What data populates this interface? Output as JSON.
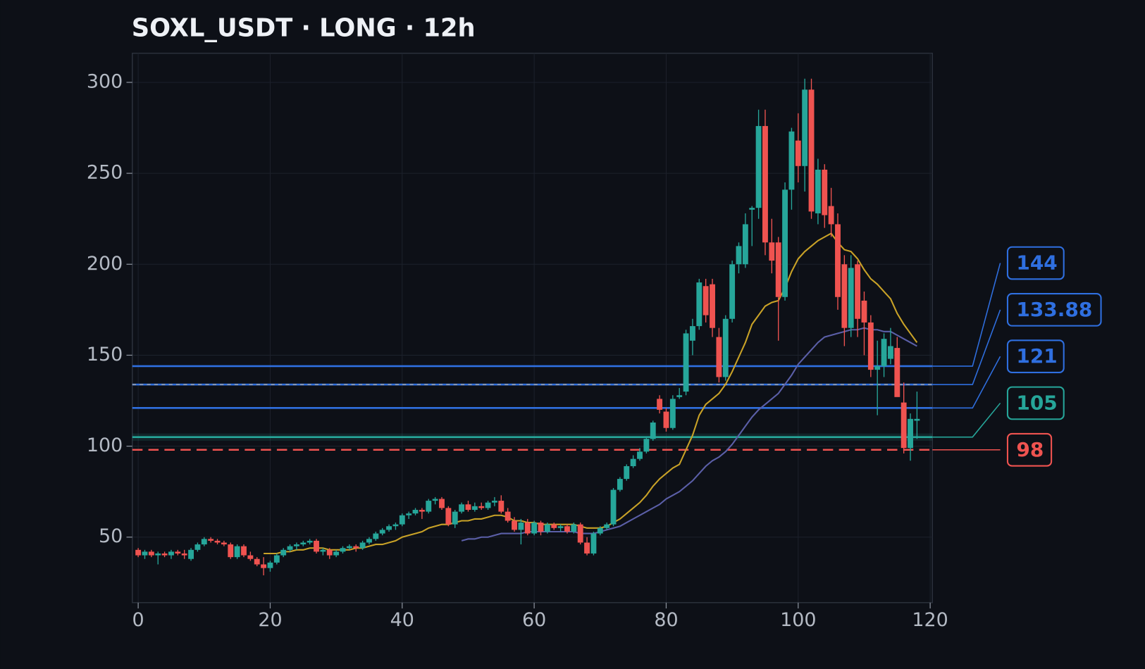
{
  "chart_data": {
    "type": "candlestick",
    "title": "SOXL_USDT · LONG · 12h",
    "x": [
      0,
      1,
      2,
      3,
      4,
      5,
      6,
      7,
      8,
      9,
      10,
      11,
      12,
      13,
      14,
      15,
      16,
      17,
      18,
      19,
      20,
      21,
      22,
      23,
      24,
      25,
      26,
      27,
      28,
      29,
      30,
      31,
      32,
      33,
      34,
      35,
      36,
      37,
      38,
      39,
      40,
      41,
      42,
      43,
      44,
      45,
      46,
      47,
      48,
      49,
      50,
      51,
      52,
      53,
      54,
      55,
      56,
      57,
      58,
      59,
      60,
      61,
      62,
      63,
      64,
      65,
      66,
      67,
      68,
      69,
      70,
      71,
      72,
      73,
      74,
      75,
      76,
      77,
      78,
      79,
      80,
      81,
      82,
      83,
      84,
      85,
      86,
      87,
      88,
      89,
      90,
      91,
      92,
      93,
      94,
      95,
      96,
      97,
      98,
      99,
      100,
      101,
      102,
      103,
      104,
      105,
      106,
      107,
      108,
      109,
      110,
      111,
      112,
      113,
      114,
      115,
      116,
      117,
      118
    ],
    "open": [
      43,
      40,
      42,
      40,
      41,
      40,
      42,
      41,
      38,
      43,
      46,
      49,
      48,
      47,
      46,
      39,
      45,
      40,
      38,
      35,
      33,
      36,
      40,
      43,
      45,
      46,
      47,
      48,
      42,
      43,
      40,
      42,
      44,
      45,
      44,
      47,
      49,
      52,
      54,
      56,
      57,
      62,
      63,
      65,
      64,
      70,
      71,
      66,
      57,
      64,
      68,
      65,
      67,
      66,
      69,
      70,
      64,
      59,
      54,
      58,
      52,
      58,
      53,
      57,
      55,
      56,
      53,
      57,
      47,
      41,
      52,
      55,
      57,
      76,
      82,
      89,
      93,
      97,
      104,
      126,
      119,
      110,
      127,
      130,
      158,
      166,
      188,
      189,
      160,
      138,
      170,
      200,
      200,
      230,
      231,
      276,
      212,
      212,
      182,
      241,
      268,
      254,
      296,
      228,
      252,
      232,
      222,
      200,
      165,
      200,
      180,
      168,
      142,
      144,
      148,
      154,
      124,
      99,
      114
    ],
    "high": [
      44,
      43,
      43,
      42,
      42,
      43,
      43,
      43,
      44,
      47,
      50,
      50,
      49,
      48,
      47,
      46,
      46,
      42,
      39,
      39,
      37,
      41,
      44,
      46,
      47,
      48,
      49,
      49,
      44,
      44,
      43,
      45,
      46,
      46,
      48,
      50,
      53,
      55,
      57,
      58,
      63,
      64,
      66,
      66,
      71,
      72,
      72,
      67,
      65,
      69,
      70,
      69,
      69,
      70,
      72,
      73,
      66,
      61,
      60,
      60,
      59,
      59,
      58,
      58,
      57,
      57,
      58,
      58,
      50,
      53,
      56,
      58,
      77,
      83,
      90,
      95,
      99,
      105,
      114,
      128,
      121,
      128,
      132,
      164,
      170,
      192,
      192,
      192,
      165,
      172,
      202,
      212,
      228,
      232,
      285,
      285,
      225,
      215,
      245,
      275,
      283,
      302,
      302,
      258,
      255,
      242,
      228,
      205,
      205,
      202,
      185,
      172,
      158,
      162,
      165,
      160,
      135,
      118,
      130
    ],
    "low": [
      39,
      38,
      39,
      35,
      39,
      38,
      40,
      38,
      37,
      42,
      45,
      47,
      46,
      45,
      38,
      38,
      39,
      37,
      34,
      29,
      31,
      35,
      39,
      42,
      43,
      45,
      46,
      41,
      40,
      38,
      39,
      41,
      43,
      42,
      43,
      46,
      48,
      51,
      53,
      54,
      56,
      60,
      62,
      60,
      63,
      68,
      65,
      56,
      55,
      63,
      64,
      64,
      65,
      65,
      67,
      63,
      58,
      53,
      46,
      51,
      51,
      51,
      52,
      54,
      53,
      52,
      52,
      46,
      40,
      40,
      51,
      54,
      56,
      75,
      81,
      88,
      92,
      96,
      103,
      118,
      108,
      109,
      126,
      128,
      150,
      164,
      168,
      160,
      135,
      136,
      168,
      195,
      198,
      210,
      225,
      205,
      195,
      158,
      180,
      230,
      245,
      240,
      225,
      222,
      220,
      215,
      175,
      155,
      160,
      160,
      150,
      138,
      117,
      138,
      145,
      128,
      96,
      92,
      104
    ],
    "close": [
      40,
      42,
      40,
      41,
      40,
      42,
      41,
      40,
      43,
      46,
      49,
      48,
      47,
      46,
      39,
      45,
      40,
      38,
      35,
      33,
      36,
      40,
      43,
      45,
      46,
      47,
      48,
      42,
      43,
      40,
      42,
      44,
      45,
      44,
      47,
      49,
      52,
      54,
      56,
      57,
      62,
      63,
      65,
      64,
      70,
      71,
      66,
      57,
      64,
      68,
      65,
      67,
      66,
      69,
      70,
      64,
      59,
      54,
      58,
      52,
      58,
      53,
      57,
      55,
      56,
      53,
      57,
      47,
      41,
      52,
      55,
      57,
      76,
      82,
      89,
      93,
      97,
      104,
      113,
      120,
      110,
      126,
      128,
      162,
      166,
      190,
      172,
      165,
      138,
      170,
      200,
      210,
      222,
      231,
      276,
      212,
      202,
      182,
      241,
      273,
      254,
      296,
      229,
      252,
      227,
      222,
      182,
      165,
      198,
      170,
      168,
      142,
      144,
      159,
      155,
      127,
      99,
      115,
      115
    ],
    "up_color": "#26a69a",
    "down_color": "#ef5350",
    "lines": [
      {
        "color": "#c9a227",
        "values": [
          null,
          null,
          null,
          null,
          null,
          null,
          null,
          null,
          null,
          null,
          null,
          null,
          null,
          null,
          null,
          null,
          null,
          null,
          null,
          41,
          41,
          41,
          42,
          42,
          43,
          43,
          44,
          44,
          44,
          43,
          43,
          43,
          43,
          44,
          44,
          45,
          46,
          46,
          47,
          48,
          50,
          51,
          52,
          53,
          55,
          56,
          57,
          57,
          58,
          59,
          59,
          60,
          60,
          61,
          62,
          62,
          61,
          59,
          59,
          58,
          58,
          57,
          57,
          57,
          57,
          57,
          57,
          56,
          55,
          55,
          55,
          56,
          58,
          60,
          63,
          66,
          69,
          73,
          78,
          82,
          85,
          88,
          90,
          98,
          106,
          117,
          123,
          126,
          129,
          134,
          141,
          149,
          157,
          167,
          172,
          177,
          179,
          180,
          187,
          196,
          203,
          207,
          210,
          213,
          215,
          217,
          212,
          208,
          207,
          203,
          197,
          192,
          189,
          185,
          181,
          173,
          167,
          162,
          157
        ]
      },
      {
        "color": "#5b5fa8",
        "values": [
          null,
          null,
          null,
          null,
          null,
          null,
          null,
          null,
          null,
          null,
          null,
          null,
          null,
          null,
          null,
          null,
          null,
          null,
          null,
          null,
          null,
          null,
          null,
          null,
          null,
          null,
          null,
          null,
          null,
          null,
          null,
          null,
          null,
          null,
          null,
          null,
          null,
          null,
          null,
          null,
          null,
          null,
          null,
          null,
          null,
          null,
          null,
          null,
          null,
          48,
          49,
          49,
          50,
          50,
          51,
          52,
          52,
          52,
          52,
          53,
          53,
          53,
          53,
          53,
          53,
          53,
          53,
          52,
          52,
          52,
          53,
          54,
          55,
          56,
          58,
          60,
          62,
          64,
          66,
          68,
          71,
          73,
          75,
          78,
          81,
          85,
          89,
          92,
          94,
          97,
          101,
          106,
          111,
          116,
          120,
          123,
          126,
          129,
          134,
          139,
          145,
          149,
          153,
          157,
          160,
          161,
          162,
          163,
          164,
          164,
          165,
          164,
          164,
          163,
          163,
          161,
          159,
          157,
          155
        ]
      }
    ],
    "levels": [
      {
        "value": 144,
        "color": "#2f6fe0",
        "style": "solid"
      },
      {
        "value": 133.88,
        "color": "#2f6fe0",
        "style": "dashed"
      },
      {
        "value": 121,
        "color": "#2f6fe0",
        "style": "solid"
      },
      {
        "value": 105,
        "color": "#26a69a",
        "style": "solid"
      },
      {
        "value": 98,
        "color": "#ef5350",
        "style": "dashed"
      }
    ],
    "xlim": [
      -1,
      120
    ],
    "ylim": [
      14,
      316
    ],
    "xticks": [
      0,
      20,
      40,
      60,
      80,
      100,
      120
    ],
    "yticks": [
      50,
      100,
      150,
      200,
      250,
      300
    ],
    "grid": true
  }
}
